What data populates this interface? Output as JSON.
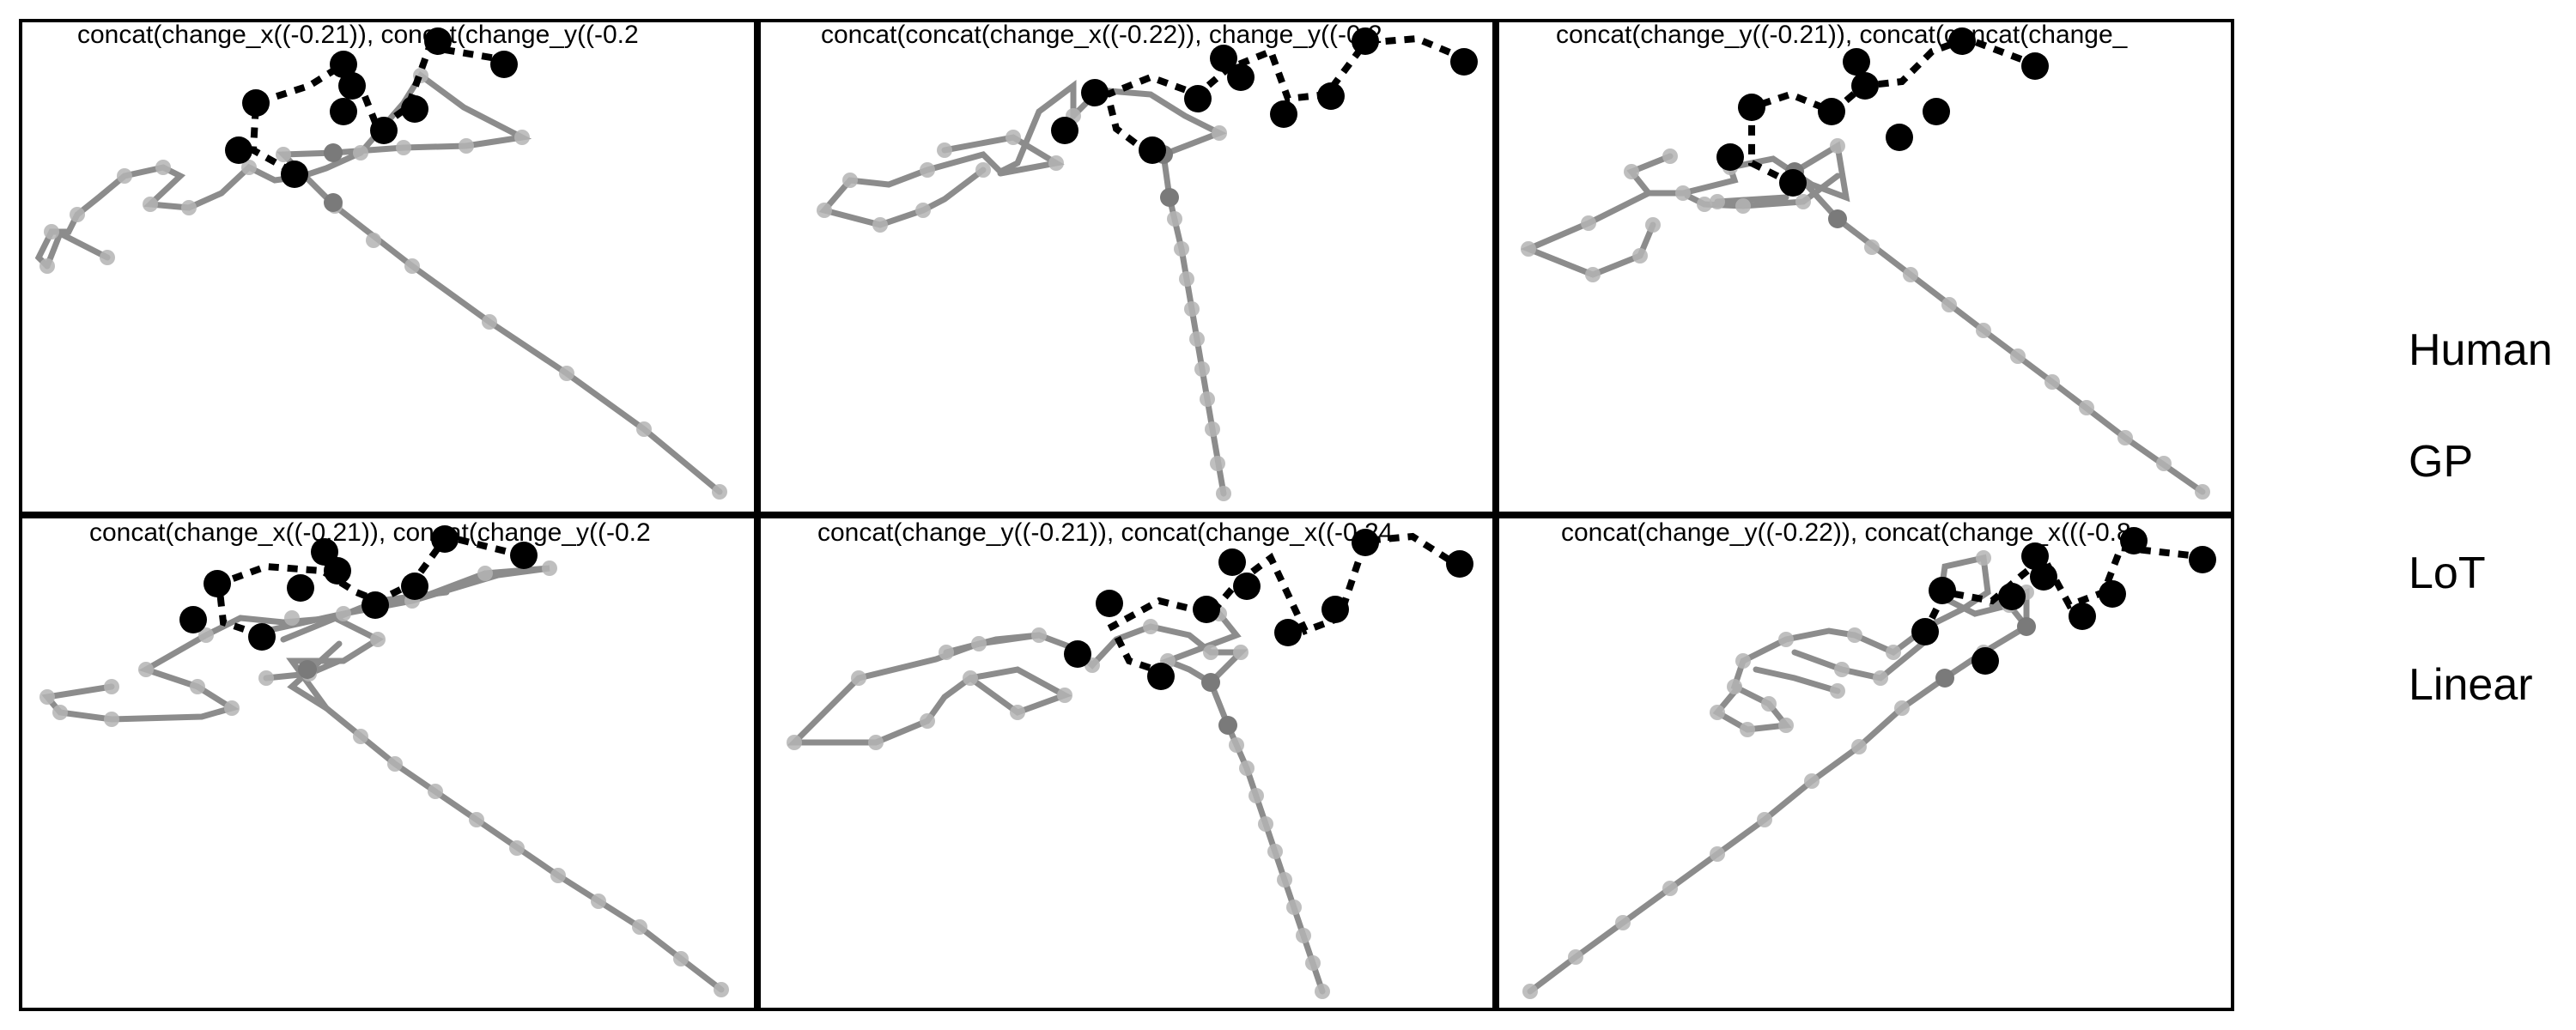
{
  "panels": [
    {
      "title": "concat(change_x((-0.21)), concat(change_y((-0.2"
    },
    {
      "title": "concat(concat(change_x((-0.22)), change_y((-0.2"
    },
    {
      "title": "concat(change_y((-0.21)), concat(concat(change_"
    },
    {
      "title": "concat(change_x((-0.21)), concat(change_y((-0.2"
    },
    {
      "title": "concat(change_y((-0.21)), concat(change_x((-0.24"
    },
    {
      "title": "concat(change_y((-0.22)), concat(change_x(((-0.8"
    }
  ],
  "legend": {
    "items": [
      {
        "label": "Human"
      },
      {
        "label": "GP"
      },
      {
        "label": "LoT"
      },
      {
        "label": "Linear"
      }
    ]
  },
  "colors": {
    "human": "#000000",
    "model_line": "#8c8c8c",
    "model_point": "#b4b4b4"
  }
}
